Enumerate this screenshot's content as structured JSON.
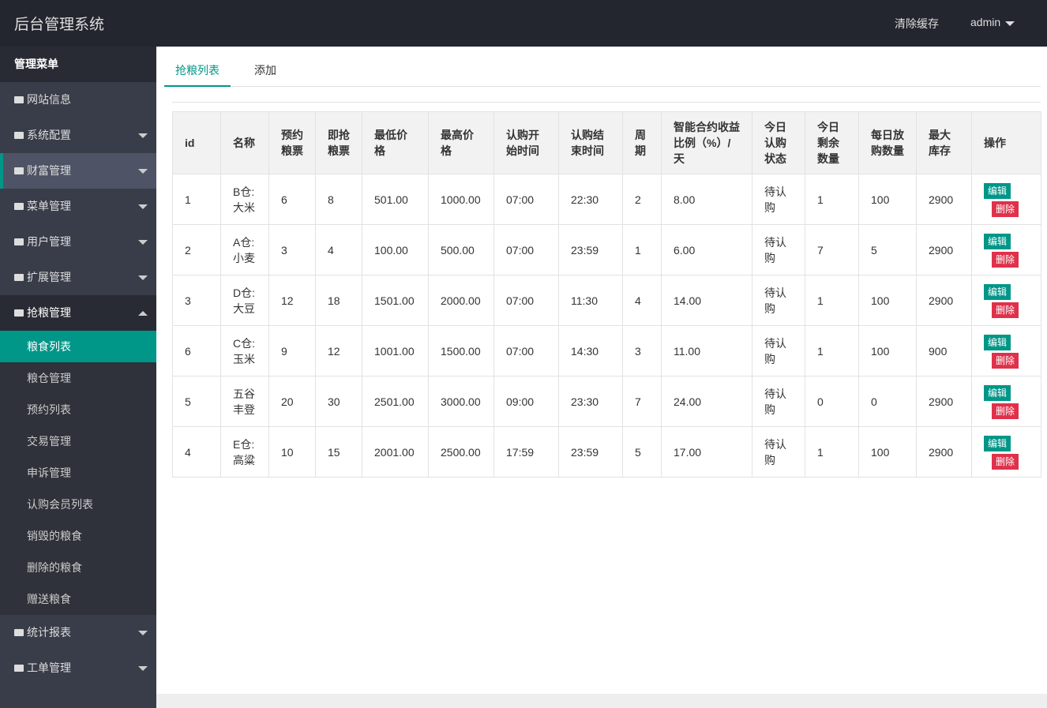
{
  "header": {
    "title": "后台管理系统",
    "links": [
      "清除缓存",
      "admin"
    ]
  },
  "sidebar": {
    "title": "管理菜单",
    "items": [
      {
        "label": "网站信息",
        "icon": "home"
      },
      {
        "label": "系统配置",
        "icon": "gear",
        "expandable": true
      },
      {
        "label": "财富管理",
        "icon": "money",
        "expandable": true,
        "active": true
      },
      {
        "label": "菜单管理",
        "icon": "bars",
        "expandable": true
      },
      {
        "label": "用户管理",
        "icon": "users",
        "expandable": true
      },
      {
        "label": "扩展管理",
        "icon": "wrench",
        "expandable": true
      },
      {
        "label": "抢粮管理",
        "icon": "bars",
        "expandable": true,
        "open": true,
        "children": [
          "粮食列表",
          "粮仓管理",
          "预约列表",
          "交易管理",
          "申诉管理",
          "认购会员列表",
          "销毁的粮食",
          "删除的粮食",
          "赠送粮食"
        ],
        "selected": 0
      },
      {
        "label": "统计报表",
        "icon": "home",
        "expandable": true
      },
      {
        "label": "工单管理",
        "icon": "bars",
        "expandable": true
      }
    ]
  },
  "tabs": {
    "items": [
      "抢粮列表",
      "添加"
    ],
    "selected": 0
  },
  "table": {
    "columns": [
      "id",
      "名称",
      "预约粮票",
      "即抢粮票",
      "最低价格",
      "最高价格",
      "认购开始时间",
      "认购结束时间",
      "周期",
      "智能合约收益比例（%）/ 天",
      "今日认购状态",
      "今日剩余数量",
      "每日放购数量",
      "最大库存",
      "操作"
    ],
    "rows": [
      [
        "1",
        "B仓:大米",
        "6",
        "8",
        "501.00",
        "1000.00",
        "07:00",
        "22:30",
        "2",
        "8.00",
        "待认购",
        "1",
        "100",
        "2900"
      ],
      [
        "2",
        "A仓:小麦",
        "3",
        "4",
        "100.00",
        "500.00",
        "07:00",
        "23:59",
        "1",
        "6.00",
        "待认购",
        "7",
        "5",
        "2900"
      ],
      [
        "3",
        "D仓:大豆",
        "12",
        "18",
        "1501.00",
        "2000.00",
        "07:00",
        "11:30",
        "4",
        "14.00",
        "待认购",
        "1",
        "100",
        "2900"
      ],
      [
        "6",
        "C仓:玉米",
        "9",
        "12",
        "1001.00",
        "1500.00",
        "07:00",
        "14:30",
        "3",
        "11.00",
        "待认购",
        "1",
        "100",
        "900"
      ],
      [
        "5",
        "五谷丰登",
        "20",
        "30",
        "2501.00",
        "3000.00",
        "09:00",
        "23:30",
        "7",
        "24.00",
        "待认购",
        "0",
        "0",
        "2900"
      ],
      [
        "4",
        "E仓:高粱",
        "10",
        "15",
        "2001.00",
        "2500.00",
        "17:59",
        "23:59",
        "5",
        "17.00",
        "待认购",
        "1",
        "100",
        "2900"
      ]
    ],
    "actions": [
      "编辑",
      "删除"
    ]
  }
}
